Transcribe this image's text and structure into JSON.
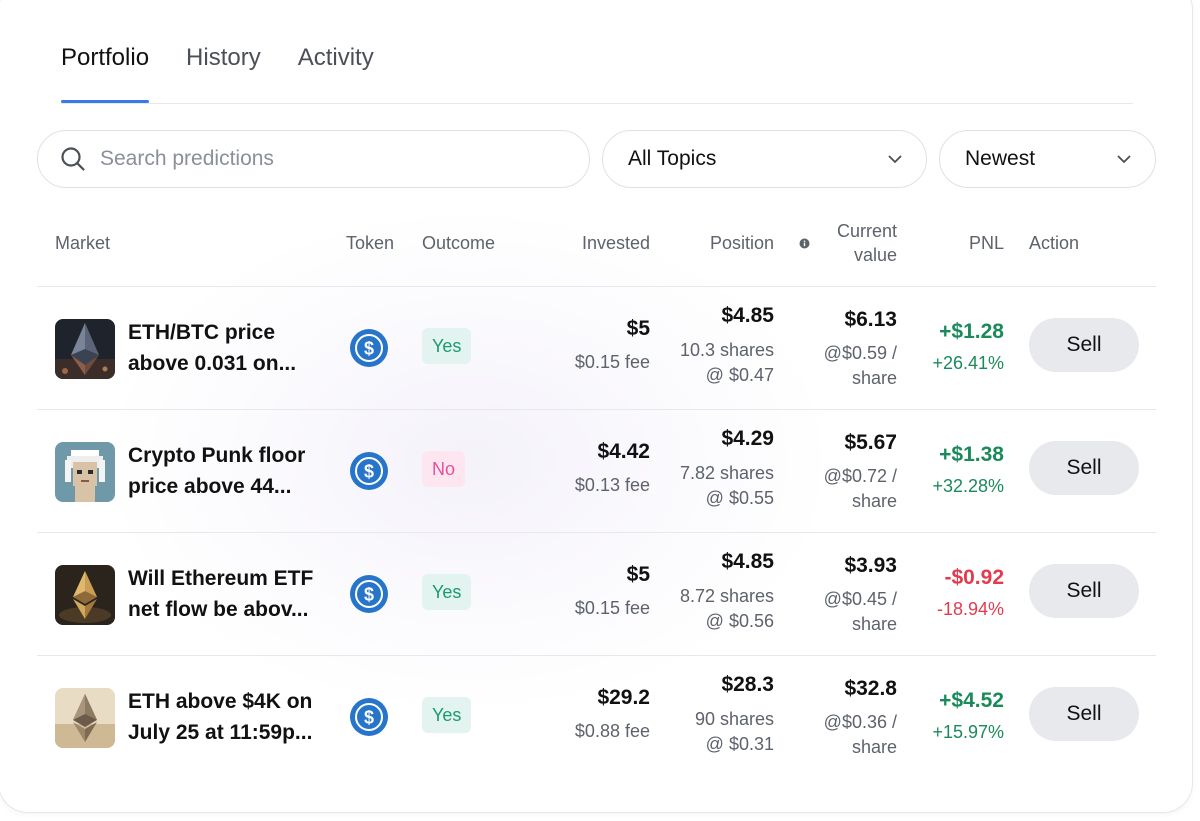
{
  "tabs": [
    {
      "label": "Portfolio",
      "active": true
    },
    {
      "label": "History",
      "active": false
    },
    {
      "label": "Activity",
      "active": false
    }
  ],
  "search": {
    "placeholder": "Search predictions",
    "value": ""
  },
  "filters": {
    "topics": "All Topics",
    "sort": "Newest"
  },
  "table": {
    "headers": {
      "market": "Market",
      "token": "Token",
      "outcome": "Outcome",
      "invested": "Invested",
      "position": "Position",
      "current_value_line1": "Current",
      "current_value_line2": "value",
      "pnl": "PNL",
      "action": "Action"
    },
    "rows": [
      {
        "thumb": "eth-btc-image",
        "market": "ETH/BTC price above 0.031 on...",
        "token": "usdc-icon",
        "outcome": "Yes",
        "invested": "$5",
        "fee": "$0.15 fee",
        "position": "$4.85",
        "shares": "10.3 shares",
        "avg_price": "@ $0.47",
        "current_value": "$6.13",
        "per_share_price": "@$0.59 /",
        "per_share_unit": "share",
        "pnl": "+$1.28",
        "pnl_pct": "+26.41%",
        "action": "Sell"
      },
      {
        "thumb": "crypto-punk-image",
        "market": "Crypto Punk floor price above 44...",
        "token": "usdc-icon",
        "outcome": "No",
        "invested": "$4.42",
        "fee": "$0.13 fee",
        "position": "$4.29",
        "shares": "7.82 shares",
        "avg_price": "@ $0.55",
        "current_value": "$5.67",
        "per_share_price": "@$0.72 /",
        "per_share_unit": "share",
        "pnl": "+$1.38",
        "pnl_pct": "+32.28%",
        "action": "Sell"
      },
      {
        "thumb": "ethereum-etf-image",
        "market": "Will Ethereum ETF net flow be abov...",
        "token": "usdc-icon",
        "outcome": "Yes",
        "invested": "$5",
        "fee": "$0.15 fee",
        "position": "$4.85",
        "shares": "8.72 shares",
        "avg_price": "@ $0.56",
        "current_value": "$3.93",
        "per_share_price": "@$0.45 /",
        "per_share_unit": "share",
        "pnl": "-$0.92",
        "pnl_pct": "-18.94%",
        "action": "Sell"
      },
      {
        "thumb": "eth-4k-image",
        "market": "ETH above $4K on July 25 at 11:59p...",
        "token": "usdc-icon",
        "outcome": "Yes",
        "invested": "$29.2",
        "fee": "$0.88 fee",
        "position": "$28.3",
        "shares": "90 shares",
        "avg_price": "@ $0.31",
        "current_value": "$32.8",
        "per_share_price": "@$0.36 /",
        "per_share_unit": "share",
        "pnl": "+$4.52",
        "pnl_pct": "+15.97%",
        "action": "Sell"
      }
    ]
  },
  "colors": {
    "accent": "#3a79e6",
    "positive": "#1b8a5a",
    "negative": "#e23b4f",
    "yes_text": "#1c9a72",
    "no_text": "#e8509a",
    "usdc": "#2775ca"
  }
}
